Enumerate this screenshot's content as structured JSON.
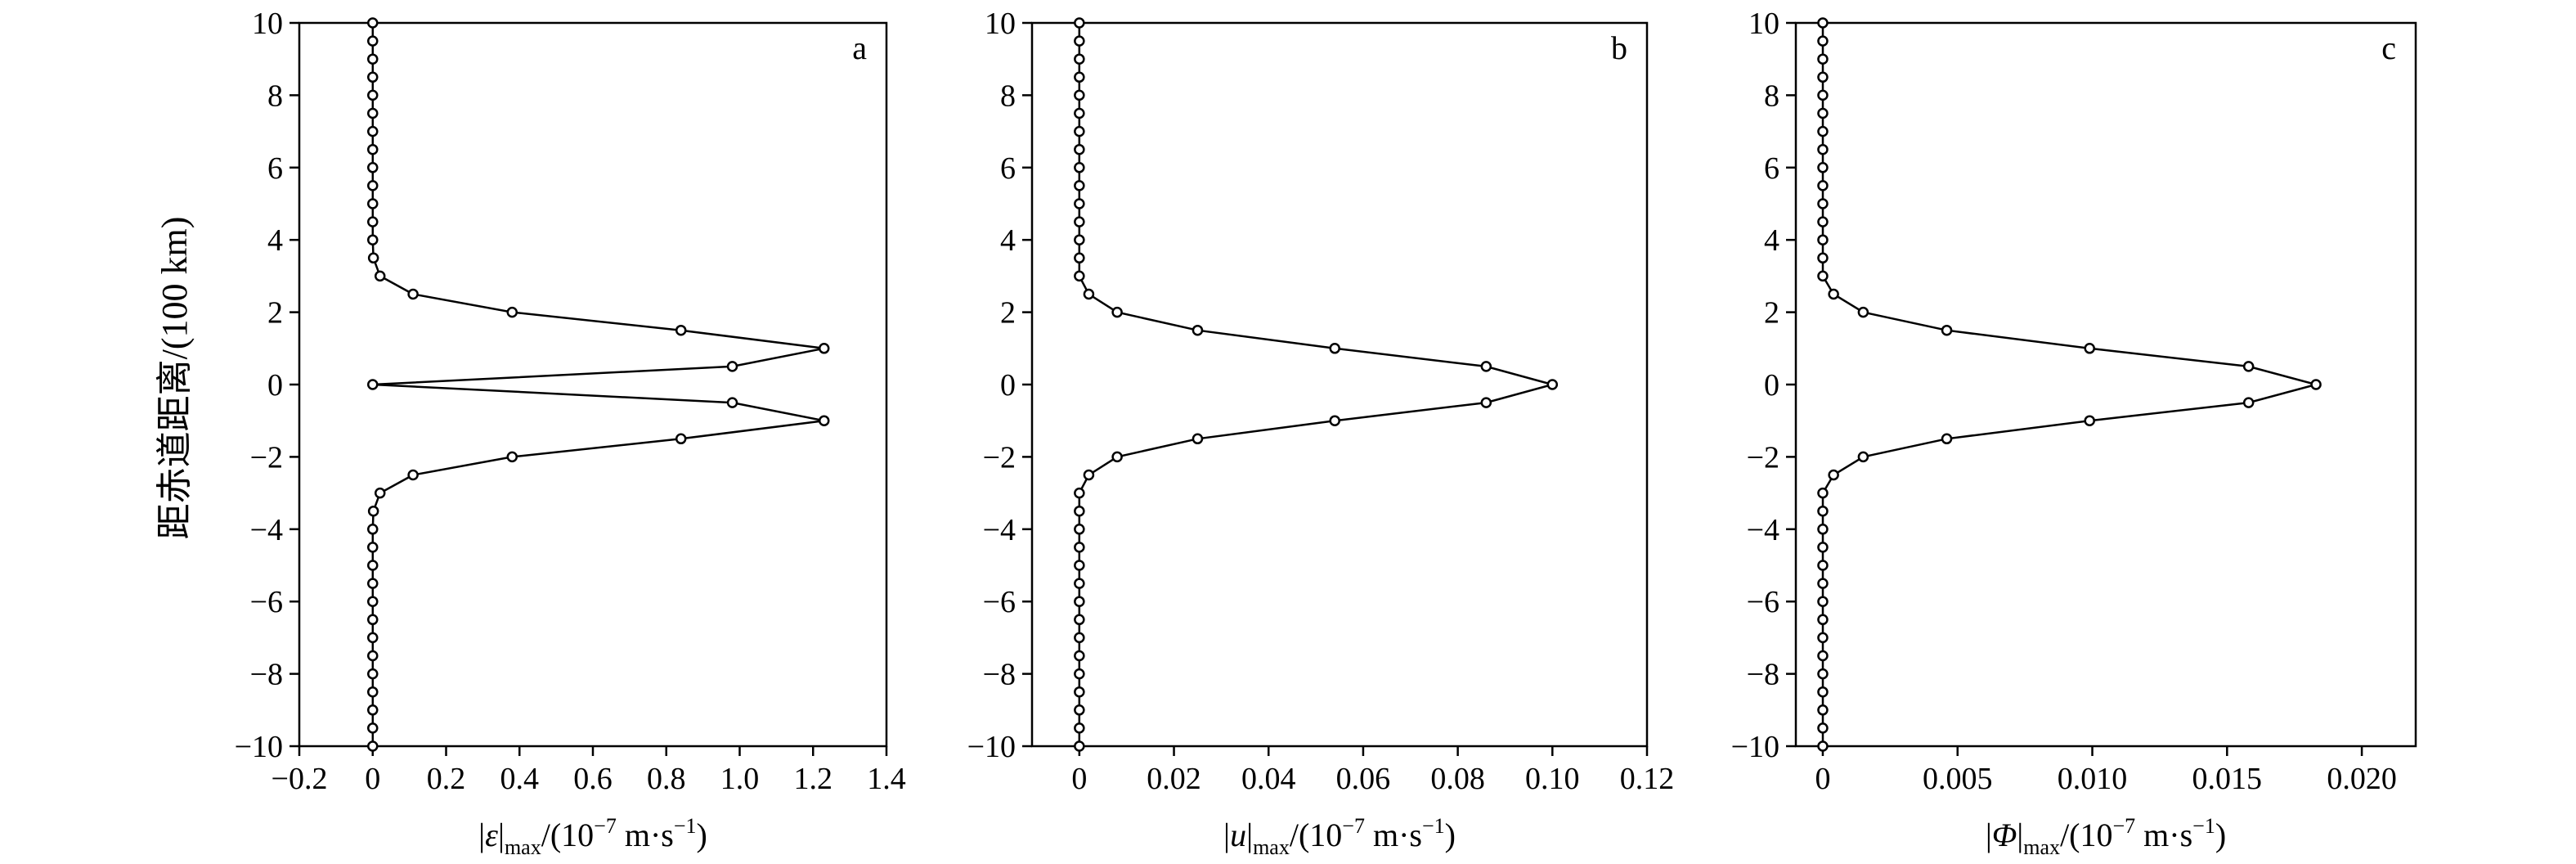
{
  "figure": {
    "ylabel": "距赤道距离/(100 km)"
  },
  "chart_data": [
    {
      "type": "line",
      "panel_letter": "a",
      "xlabel": {
        "prefix": "|",
        "var": "ε",
        "sub": "max",
        "unit_pre": "/(10",
        "sup": "−7",
        "unit_mid": " m·s",
        "sup2": "−1",
        "unit_post": ")"
      },
      "xlim": [
        -0.2,
        1.4
      ],
      "ylim": [
        -10,
        10
      ],
      "xticks": [
        -0.2,
        0,
        0.2,
        0.4,
        0.6,
        0.8,
        1.0,
        1.2,
        1.4
      ],
      "xtick_labels": [
        "−0.2",
        "0",
        "0.2",
        "0.4",
        "0.6",
        "0.8",
        "1.0",
        "1.2",
        "1.4"
      ],
      "yticks": [
        -10,
        -8,
        -6,
        -4,
        -2,
        0,
        2,
        4,
        6,
        8,
        10
      ],
      "ytick_labels": [
        "−10",
        "−8",
        "−6",
        "−4",
        "−2",
        "0",
        "2",
        "4",
        "6",
        "8",
        "10"
      ],
      "grid": false,
      "marker": "open-circle",
      "points": [
        [
          0,
          10
        ],
        [
          0,
          9.5
        ],
        [
          0,
          9
        ],
        [
          0,
          8.5
        ],
        [
          0,
          8
        ],
        [
          0,
          7.5
        ],
        [
          0,
          7
        ],
        [
          0,
          6.5
        ],
        [
          0,
          6
        ],
        [
          0,
          5.5
        ],
        [
          0,
          5
        ],
        [
          0,
          4.5
        ],
        [
          0,
          4
        ],
        [
          0.002,
          3.5
        ],
        [
          0.02,
          3
        ],
        [
          0.11,
          2.5
        ],
        [
          0.38,
          2
        ],
        [
          0.84,
          1.5
        ],
        [
          1.23,
          1
        ],
        [
          0.98,
          0.5
        ],
        [
          0,
          0
        ],
        [
          0.98,
          -0.5
        ],
        [
          1.23,
          -1
        ],
        [
          0.84,
          -1.5
        ],
        [
          0.38,
          -2
        ],
        [
          0.11,
          -2.5
        ],
        [
          0.02,
          -3
        ],
        [
          0.002,
          -3.5
        ],
        [
          0,
          -4
        ],
        [
          0,
          -4.5
        ],
        [
          0,
          -5
        ],
        [
          0,
          -5.5
        ],
        [
          0,
          -6
        ],
        [
          0,
          -6.5
        ],
        [
          0,
          -7
        ],
        [
          0,
          -7.5
        ],
        [
          0,
          -8
        ],
        [
          0,
          -8.5
        ],
        [
          0,
          -9
        ],
        [
          0,
          -9.5
        ],
        [
          0,
          -10
        ]
      ]
    },
    {
      "type": "line",
      "panel_letter": "b",
      "xlabel": {
        "prefix": "|",
        "var": "u",
        "sub": "max",
        "unit_pre": "/(10",
        "sup": "−7",
        "unit_mid": " m·s",
        "sup2": "−1",
        "unit_post": ")"
      },
      "xlim": [
        -0.01,
        0.12
      ],
      "ylim": [
        -10,
        10
      ],
      "xticks": [
        0,
        0.02,
        0.04,
        0.06,
        0.08,
        0.1,
        0.12
      ],
      "xtick_labels": [
        "0",
        "0.02",
        "0.04",
        "0.06",
        "0.08",
        "0.10",
        "0.12"
      ],
      "yticks": [
        -10,
        -8,
        -6,
        -4,
        -2,
        0,
        2,
        4,
        6,
        8,
        10
      ],
      "ytick_labels": [
        "−10",
        "−8",
        "−6",
        "−4",
        "−2",
        "0",
        "2",
        "4",
        "6",
        "8",
        "10"
      ],
      "grid": false,
      "marker": "open-circle",
      "points": [
        [
          0,
          10
        ],
        [
          0,
          9.5
        ],
        [
          0,
          9
        ],
        [
          0,
          8.5
        ],
        [
          0,
          8
        ],
        [
          0,
          7.5
        ],
        [
          0,
          7
        ],
        [
          0,
          6.5
        ],
        [
          0,
          6
        ],
        [
          0,
          5.5
        ],
        [
          0,
          5
        ],
        [
          0,
          4.5
        ],
        [
          0,
          4
        ],
        [
          0,
          3.5
        ],
        [
          0,
          3
        ],
        [
          0.002,
          2.5
        ],
        [
          0.008,
          2
        ],
        [
          0.025,
          1.5
        ],
        [
          0.054,
          1
        ],
        [
          0.086,
          0.5
        ],
        [
          0.1,
          0
        ],
        [
          0.086,
          -0.5
        ],
        [
          0.054,
          -1
        ],
        [
          0.025,
          -1.5
        ],
        [
          0.008,
          -2
        ],
        [
          0.002,
          -2.5
        ],
        [
          0,
          -3
        ],
        [
          0,
          -3.5
        ],
        [
          0,
          -4
        ],
        [
          0,
          -4.5
        ],
        [
          0,
          -5
        ],
        [
          0,
          -5.5
        ],
        [
          0,
          -6
        ],
        [
          0,
          -6.5
        ],
        [
          0,
          -7
        ],
        [
          0,
          -7.5
        ],
        [
          0,
          -8
        ],
        [
          0,
          -8.5
        ],
        [
          0,
          -9
        ],
        [
          0,
          -9.5
        ],
        [
          0,
          -10
        ]
      ]
    },
    {
      "type": "line",
      "panel_letter": "c",
      "xlabel": {
        "prefix": "|",
        "var": "Φ",
        "sub": "max",
        "unit_pre": "/(10",
        "sup": "−7",
        "unit_mid": " m·s",
        "sup2": "−1",
        "unit_post": ")"
      },
      "xlim": [
        -0.001,
        0.022
      ],
      "ylim": [
        -10,
        10
      ],
      "xticks": [
        0,
        0.005,
        0.01,
        0.015,
        0.02
      ],
      "xtick_labels": [
        "0",
        "0.005",
        "0.010",
        "0.015",
        "0.020"
      ],
      "yticks": [
        -10,
        -8,
        -6,
        -4,
        -2,
        0,
        2,
        4,
        6,
        8,
        10
      ],
      "ytick_labels": [
        "−10",
        "−8",
        "−6",
        "−4",
        "−2",
        "0",
        "2",
        "4",
        "6",
        "8",
        "10"
      ],
      "grid": false,
      "marker": "open-circle",
      "points": [
        [
          0,
          10
        ],
        [
          0,
          9.5
        ],
        [
          0,
          9
        ],
        [
          0,
          8.5
        ],
        [
          0,
          8
        ],
        [
          0,
          7.5
        ],
        [
          0,
          7
        ],
        [
          0,
          6.5
        ],
        [
          0,
          6
        ],
        [
          0,
          5.5
        ],
        [
          0,
          5
        ],
        [
          0,
          4.5
        ],
        [
          0,
          4
        ],
        [
          0,
          3.5
        ],
        [
          0,
          3
        ],
        [
          0.0004,
          2.5
        ],
        [
          0.0015,
          2
        ],
        [
          0.0046,
          1.5
        ],
        [
          0.0099,
          1
        ],
        [
          0.0158,
          0.5
        ],
        [
          0.0183,
          0
        ],
        [
          0.0158,
          -0.5
        ],
        [
          0.0099,
          -1
        ],
        [
          0.0046,
          -1.5
        ],
        [
          0.0015,
          -2
        ],
        [
          0.0004,
          -2.5
        ],
        [
          0,
          -3
        ],
        [
          0,
          -3.5
        ],
        [
          0,
          -4
        ],
        [
          0,
          -4.5
        ],
        [
          0,
          -5
        ],
        [
          0,
          -5.5
        ],
        [
          0,
          -6
        ],
        [
          0,
          -6.5
        ],
        [
          0,
          -7
        ],
        [
          0,
          -7.5
        ],
        [
          0,
          -8
        ],
        [
          0,
          -8.5
        ],
        [
          0,
          -9
        ],
        [
          0,
          -9.5
        ],
        [
          0,
          -10
        ]
      ]
    }
  ]
}
